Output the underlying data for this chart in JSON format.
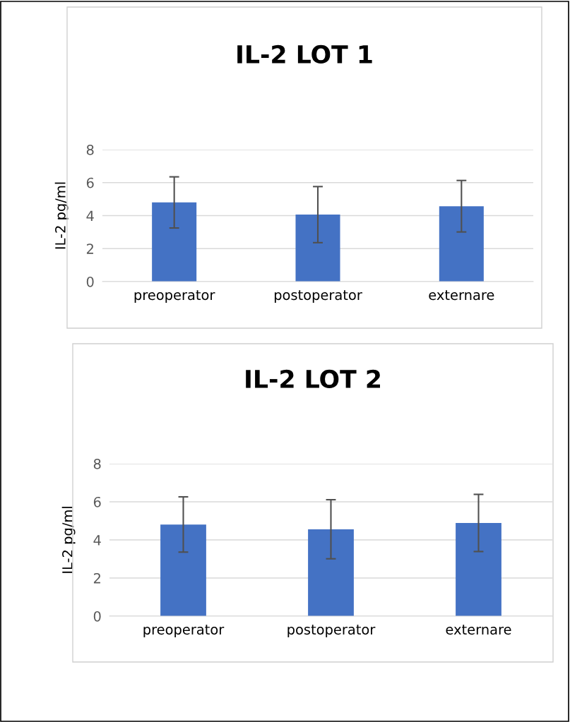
{
  "chart_data": [
    {
      "type": "bar",
      "title": "IL-2 LOT 1",
      "ylabel": "IL-2 pg/ml",
      "categories": [
        "preoperator",
        "postoperator",
        "externare"
      ],
      "series": [
        {
          "color": "#4472c4",
          "values": [
            4.8,
            4.06,
            4.57
          ],
          "errors": [
            1.55,
            1.7,
            1.56
          ]
        }
      ],
      "ylim": [
        0,
        8
      ],
      "yticks": [
        0,
        2,
        4,
        6,
        8
      ],
      "grid": "y"
    },
    {
      "type": "bar",
      "title": "IL-2 LOT 2",
      "ylabel": "IL-2 pg/ml",
      "categories": [
        "preoperator",
        "postoperator",
        "externare"
      ],
      "series": [
        {
          "color": "#4472c4",
          "values": [
            4.81,
            4.56,
            4.89
          ],
          "errors": [
            1.45,
            1.55,
            1.5
          ]
        }
      ],
      "ylim": [
        0,
        8
      ],
      "yticks": [
        0,
        2,
        4,
        6,
        8
      ],
      "grid": "y"
    }
  ]
}
